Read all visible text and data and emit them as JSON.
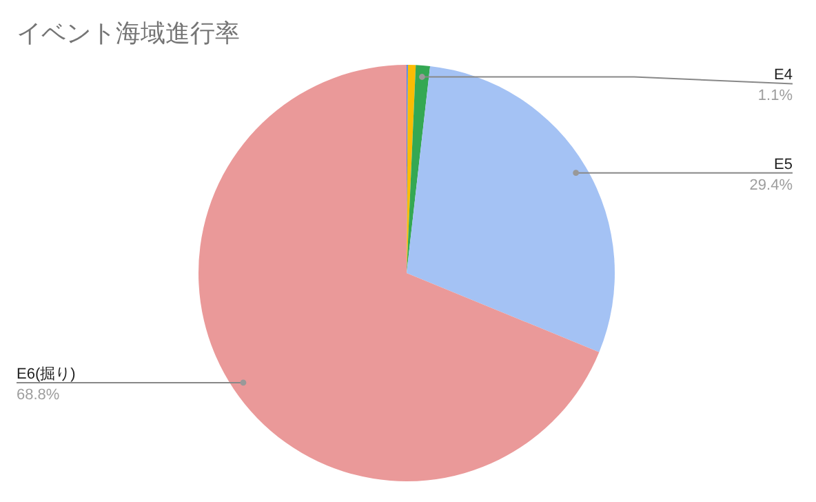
{
  "chart_data": {
    "type": "pie",
    "title": "イベント海域進行率",
    "categories": [
      null,
      null,
      "E4",
      "E5",
      "E6(掘り)"
    ],
    "values": [
      0.1,
      0.6,
      1.1,
      29.4,
      68.8
    ],
    "colors": [
      "#4285f4",
      "#fbbc04",
      "#34a853",
      "#a4c2f4",
      "#ea9999"
    ],
    "value_labels": [
      null,
      null,
      "1.1%",
      "29.4%",
      "68.8%"
    ]
  }
}
